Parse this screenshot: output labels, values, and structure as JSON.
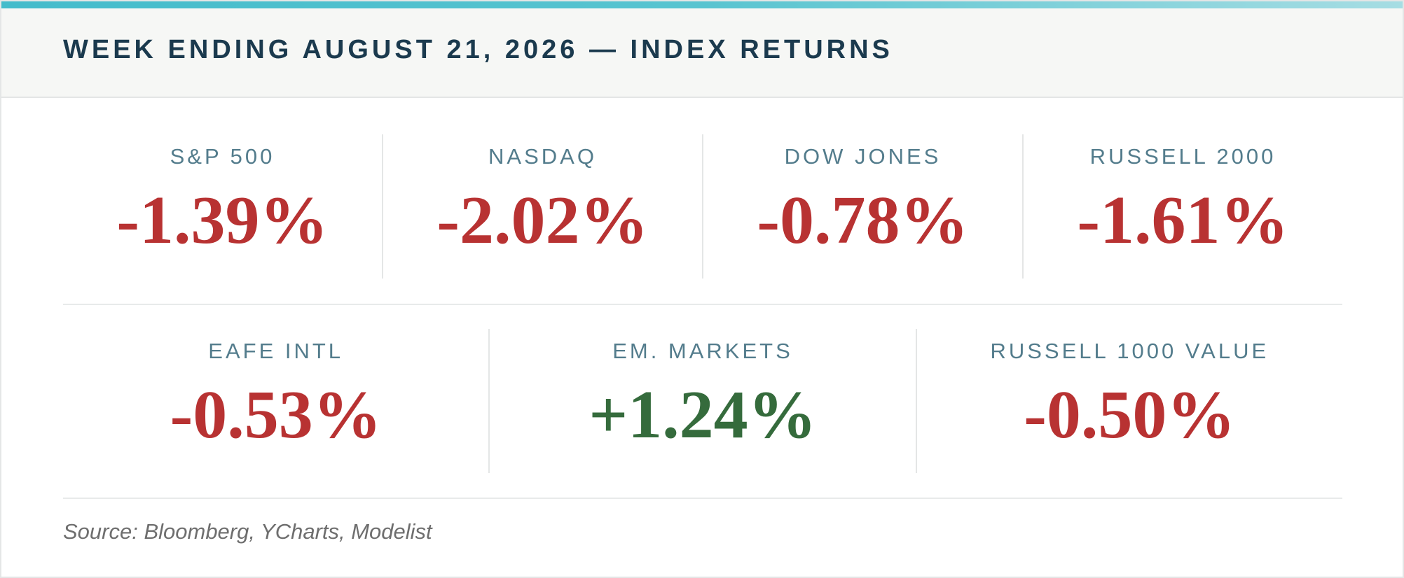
{
  "header": {
    "title": "WEEK ENDING AUGUST 21, 2026 — INDEX RETURNS"
  },
  "indices_row_1": [
    {
      "label": "S&P 500",
      "value": "-1.39%",
      "direction": "negative"
    },
    {
      "label": "NASDAQ",
      "value": "-2.02%",
      "direction": "negative"
    },
    {
      "label": "DOW JONES",
      "value": "-0.78%",
      "direction": "negative"
    },
    {
      "label": "RUSSELL 2000",
      "value": "-1.61%",
      "direction": "negative"
    }
  ],
  "indices_row_2": [
    {
      "label": "EAFE INTL",
      "value": "-0.53%",
      "direction": "negative"
    },
    {
      "label": "EM. MARKETS",
      "value": "+1.24%",
      "direction": "positive"
    },
    {
      "label": "RUSSELL 1000 VALUE",
      "value": "-0.50%",
      "direction": "negative"
    }
  ],
  "footer": {
    "source": "Source: Bloomberg, YCharts, Modelist"
  },
  "colors": {
    "accent": "#44bccb",
    "title": "#1b3a4e",
    "label": "#537c8c",
    "negative": "#b83232",
    "positive": "#356b3c"
  }
}
